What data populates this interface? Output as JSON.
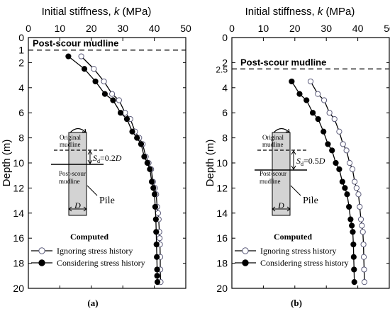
{
  "chart_data": [
    {
      "type": "line",
      "panel_label": "(a)",
      "xlabel_text": "Initial stiffness, ",
      "xlabel_var": "k",
      "xlabel_unit": " (MPa)",
      "ylabel": "Depth (m)",
      "xlim": [
        0,
        50
      ],
      "ylim": [
        20,
        0
      ],
      "xticks": [
        "0",
        "10",
        "20",
        "30",
        "40",
        "50"
      ],
      "yticks": [
        "0",
        "2",
        "4",
        "6",
        "8",
        "10",
        "12",
        "14",
        "16",
        "18",
        "20"
      ],
      "extra_ytick": "1",
      "mudline_depth": 1,
      "mudline_label": "Post-scour mudline",
      "legend_title": "Computed",
      "legend_position": "bottom-left",
      "series": [
        {
          "name": "Ignoring stress history",
          "marker": "open-circle",
          "x": [
            16.8,
            20.8,
            24.0,
            26.6,
            28.8,
            30.7,
            32.4,
            33.9,
            35.2,
            36.3,
            37.3,
            38.2,
            39.0,
            39.6,
            40.2,
            40.6,
            40.9,
            41.2,
            41.4,
            41.6,
            41.7,
            41.8,
            41.9,
            41.9,
            42.0
          ],
          "y": [
            1.5,
            2.5,
            3.5,
            4.5,
            5.0,
            6.0,
            6.5,
            7.5,
            8.0,
            8.5,
            9.5,
            10.0,
            10.5,
            11.5,
            12.0,
            12.5,
            13.5,
            14.0,
            14.5,
            15.5,
            16.0,
            16.5,
            17.5,
            18.5,
            19.5
          ]
        },
        {
          "name": "Considering stress history",
          "marker": "filled-circle",
          "x": [
            12.7,
            17.8,
            21.3,
            24.3,
            26.9,
            29.3,
            31.3,
            33.0,
            34.5,
            35.8,
            36.8,
            37.8,
            38.6,
            39.2,
            39.7,
            40.1,
            40.3,
            40.5,
            40.6,
            40.7,
            40.8,
            40.9,
            40.9,
            41.0
          ],
          "y": [
            1.5,
            2.5,
            3.5,
            4.5,
            5.0,
            6.0,
            6.5,
            7.5,
            8.0,
            8.5,
            9.5,
            10.0,
            10.5,
            11.5,
            12.0,
            12.5,
            13.5,
            14.5,
            15.5,
            16.5,
            17.5,
            18.5,
            19.0,
            19.5
          ]
        }
      ],
      "schematic": {
        "original_mudline": [
          "Original",
          "mudline"
        ],
        "post_scour_mudline": [
          "Post-scour",
          "mudline"
        ],
        "sd_symbol": "S",
        "sd_sub": "d",
        "sd_value": "=0.2",
        "sd_unit": "D",
        "pile_label": "Pile",
        "diameter_label": "D"
      }
    },
    {
      "type": "line",
      "panel_label": "(b)",
      "xlabel_text": "Initial stiffness, ",
      "xlabel_var": "k",
      "xlabel_unit": " (MPa)",
      "ylabel": "Depth (m)",
      "xlim": [
        0,
        50
      ],
      "ylim": [
        20,
        0
      ],
      "xticks": [
        "0",
        "10",
        "20",
        "30",
        "40",
        "50"
      ],
      "yticks": [
        "0",
        "2",
        "4",
        "6",
        "8",
        "10",
        "12",
        "14",
        "16",
        "18",
        "20"
      ],
      "extra_ytick": "2.5",
      "mudline_depth": 2.5,
      "mudline_label": "Post-scour mudline",
      "legend_title": "Computed",
      "legend_position": "bottom-left",
      "series": [
        {
          "name": "Ignoring stress history",
          "marker": "open-circle",
          "x": [
            25.0,
            27.3,
            29.3,
            31.0,
            32.6,
            34.1,
            35.3,
            36.4,
            37.4,
            38.3,
            39.0,
            39.6,
            40.2,
            40.6,
            41.0,
            41.3,
            41.6,
            41.8,
            41.9,
            42.0,
            42.1
          ],
          "y": [
            3.5,
            4.5,
            5.0,
            6.0,
            6.5,
            7.5,
            8.5,
            9.0,
            10.0,
            10.5,
            11.5,
            12.0,
            12.5,
            13.5,
            14.5,
            15.0,
            15.5,
            16.5,
            17.5,
            18.5,
            19.5
          ]
        },
        {
          "name": "Considering stress history",
          "marker": "filled-circle",
          "x": [
            19.0,
            21.5,
            23.7,
            25.7,
            27.4,
            29.1,
            30.5,
            31.8,
            33.0,
            34.1,
            35.1,
            35.9,
            36.6,
            37.2,
            37.7,
            38.1,
            38.4,
            38.6,
            38.7,
            38.8,
            38.9
          ],
          "y": [
            3.5,
            4.5,
            5.0,
            6.0,
            6.5,
            7.5,
            8.5,
            9.0,
            10.0,
            10.5,
            11.5,
            12.0,
            12.5,
            13.5,
            14.5,
            15.0,
            15.5,
            16.5,
            17.5,
            18.5,
            19.5
          ]
        }
      ],
      "schematic": {
        "original_mudline": [
          "Original",
          "mudline"
        ],
        "post_scour_mudline": [
          "Post-scour",
          "mudline"
        ],
        "sd_symbol": "S",
        "sd_sub": "d",
        "sd_value": "=0.5",
        "sd_unit": "D",
        "pile_label": "Pile",
        "diameter_label": "D"
      }
    }
  ]
}
